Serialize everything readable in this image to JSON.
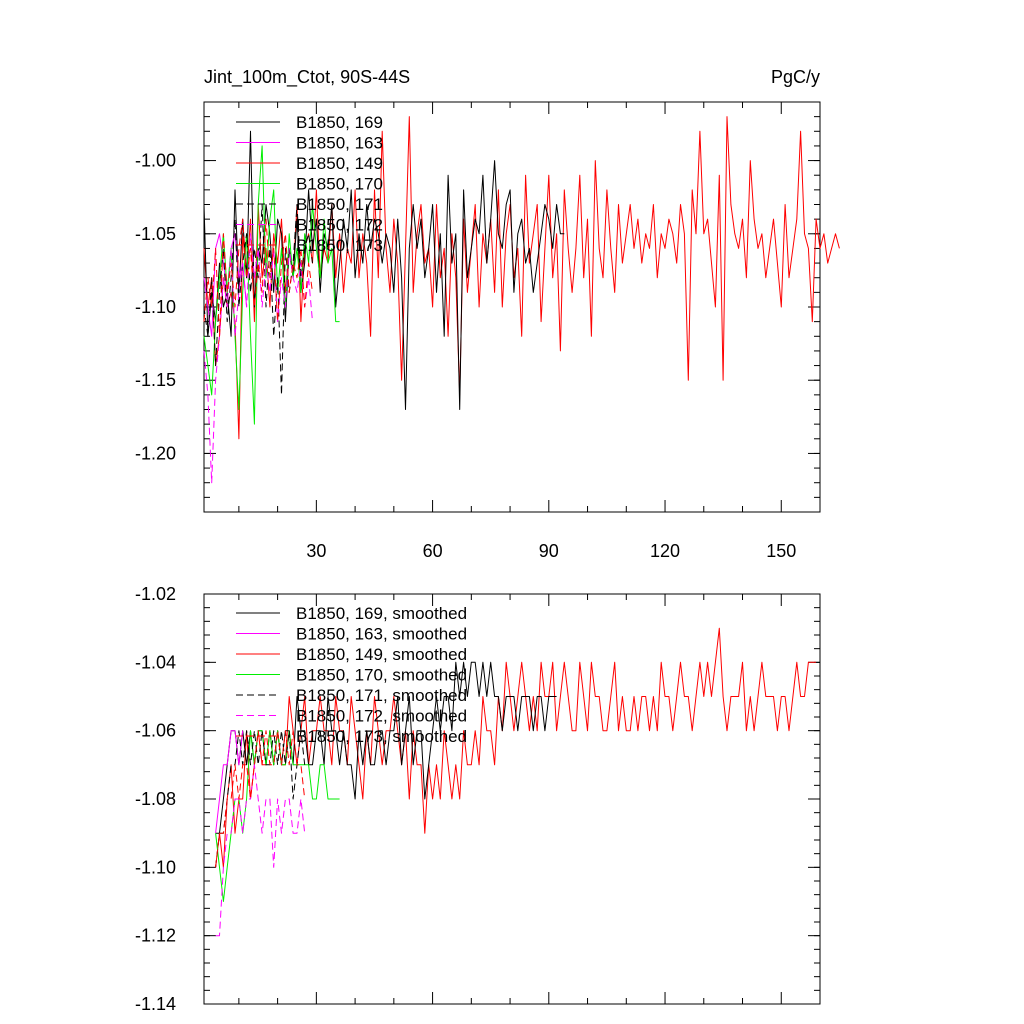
{
  "chart_data": [
    {
      "type": "line",
      "title": "Jint_100m_Ctot, 90S-44S",
      "units": "PgC/y",
      "xlim": [
        1,
        160
      ],
      "ylim": [
        -1.24,
        -0.96
      ],
      "x_ticks": [
        30,
        60,
        90,
        120,
        150
      ],
      "y_ticks": [
        -1.0,
        -1.05,
        -1.1,
        -1.15,
        -1.2
      ],
      "y_tick_labels": [
        "-1.00",
        "-1.05",
        "-1.10",
        "-1.15",
        "-1.20"
      ],
      "legend": [
        {
          "label": "B1850, 169",
          "color": "#000000",
          "dash": "solid"
        },
        {
          "label": "B1850, 163",
          "color": "#ff00ff",
          "dash": "solid"
        },
        {
          "label": "B1850, 149",
          "color": "#ff0000",
          "dash": "solid"
        },
        {
          "label": "B1850, 170",
          "color": "#00ee00",
          "dash": "solid"
        },
        {
          "label": "B1850, 171",
          "color": "#000000",
          "dash": "dash"
        },
        {
          "label": "B1850, 172",
          "color": "#ff00ff",
          "dash": "dash"
        },
        {
          "label": "B1850, 173",
          "color": "#ff0000",
          "dash": "dash"
        }
      ],
      "series": [
        {
          "color": "#ff0000",
          "dash": "solid",
          "x_start": 1,
          "values": [
            -1.06,
            -1.1,
            -1.08,
            -1.14,
            -1.12,
            -1.08,
            -1.1,
            -1.09,
            -1.11,
            -1.19,
            -1.05,
            -1.08,
            -1.04,
            -1.11,
            -1.03,
            -1.08,
            -1.06,
            -1.1,
            -1.05,
            -1.07,
            -1.04,
            -1.09,
            -1.06,
            -1.08,
            -1.03,
            -1.11,
            -1.06,
            -1.05,
            -1.07,
            -1.02,
            -1.08,
            -1.06,
            -1.07,
            -1.03,
            -1.08,
            -1.05,
            -1.09,
            -1.06,
            -1.07,
            -1.02,
            -1.08,
            -1.05,
            -1.07,
            -1.12,
            -1.02,
            -1.08,
            -0.98,
            -1.06,
            -1.09,
            -1.04,
            -1.07,
            -1.15,
            -1.06,
            -0.97,
            -1.09,
            -1.05,
            -1.03,
            -1.07,
            -1.06,
            -1.1,
            -1.03,
            -1.08,
            -1.06,
            -1.12,
            -1.05,
            -1.08,
            -1.16,
            -1.04,
            -1.09,
            -1.06,
            -1.03,
            -1.1,
            -1.05,
            -1.07,
            -1.04,
            -1.09,
            -1.02,
            -1.1,
            -1.05,
            -1.03,
            -1.08,
            -1.06,
            -1.12,
            -1.01,
            -1.07,
            -1.05,
            -1.03,
            -1.11,
            -1.06,
            -1.01,
            -1.08,
            -1.05,
            -1.13,
            -1.02,
            -1.06,
            -1.09,
            -1.06,
            -1.01,
            -1.08,
            -1.04,
            -1.12,
            -1.0,
            -1.06,
            -1.08,
            -1.02,
            -1.06,
            -1.09,
            -1.03,
            -1.07,
            -1.05,
            -1.03,
            -1.06,
            -1.04,
            -1.07,
            -1.05,
            -1.06,
            -1.03,
            -1.08,
            -1.05,
            -1.06,
            -1.04,
            -1.05,
            -1.07,
            -1.03,
            -1.05,
            -1.15,
            -1.02,
            -1.05,
            -0.98,
            -1.05,
            -1.04,
            -1.07,
            -1.1,
            -1.01,
            -1.15,
            -0.97,
            -1.03,
            -1.05,
            -1.06,
            -1.04,
            -1.08,
            -1.0,
            -1.04,
            -1.06,
            -1.05,
            -1.08,
            -1.06,
            -1.04,
            -1.07,
            -1.1,
            -1.03,
            -1.08,
            -1.06,
            -1.04,
            -0.98,
            -1.05,
            -1.06,
            -1.11,
            -1.04,
            -1.06,
            -1.05,
            -1.07,
            -1.06,
            -1.05,
            -1.06
          ]
        },
        {
          "color": "#000000",
          "dash": "solid",
          "x_start": 1,
          "values": [
            -1.03,
            -1.12,
            -1.09,
            -1.11,
            -1.07,
            -1.1,
            -1.09,
            -1.12,
            -1.02,
            -1.09,
            -1.04,
            -1.08,
            -0.98,
            -1.1,
            -1.06,
            -1.07,
            -1.03,
            -1.05,
            -1.09,
            -1.04,
            -1.05,
            -1.11,
            -1.06,
            -1.08,
            -1.04,
            -1.09,
            -1.07,
            -1.02,
            -1.06,
            -1.04,
            -1.09,
            -1.05,
            -1.06,
            -1.03,
            -1.1,
            -1.07,
            -1.04,
            -1.06,
            -1.02,
            -1.08,
            -1.05,
            -1.07,
            -1.03,
            -1.06,
            -1.04,
            -1.05,
            -1.07,
            -1.05,
            -1.06,
            -1.09,
            -1.04,
            -1.08,
            -1.17,
            -1.06,
            -1.03,
            -1.06,
            -1.04,
            -1.08,
            -1.06,
            -1.03,
            -1.09,
            -1.05,
            -1.12,
            -1.01,
            -1.07,
            -1.05,
            -1.17,
            -1.02,
            -1.08,
            -1.06,
            -1.04,
            -1.05,
            -1.01,
            -1.07,
            -1.04,
            -1.0,
            -1.05,
            -1.06,
            -1.03,
            -1.02,
            -1.09,
            -1.05,
            -1.04,
            -1.07,
            -1.06,
            -1.09,
            -1.07,
            -1.05,
            -1.03,
            -1.04,
            -1.06,
            -1.03,
            -1.05,
            -1.05
          ]
        },
        {
          "color": "#ff00ff",
          "dash": "solid",
          "x_start": 1,
          "values": [
            -1.08,
            -1.1,
            -1.12,
            -1.06,
            -1.05,
            -1.07,
            -1.09,
            -1.06,
            -1.05,
            -1.08,
            -1.07,
            -1.1
          ]
        },
        {
          "color": "#00ee00",
          "dash": "solid",
          "x_start": 1,
          "values": [
            -1.12,
            -1.14,
            -1.16,
            -1.11,
            -1.08,
            -1.05,
            -1.09,
            -1.06,
            -1.12,
            -1.17,
            -1.09,
            -1.05,
            -1.12,
            -1.18,
            -1.03,
            -0.99,
            -1.08,
            -1.04,
            -1.02,
            -1.09,
            -1.06,
            -1.1,
            -1.05,
            -1.08,
            -1.06,
            -1.09,
            -1.05,
            -1.07,
            -1.03,
            -1.06,
            -1.08,
            -1.04,
            -1.07,
            -1.06,
            -1.11,
            -1.11
          ]
        },
        {
          "color": "#000000",
          "dash": "dash",
          "x_start": 1,
          "values": [
            -1.1,
            -1.12,
            -1.08,
            -1.14,
            -1.09,
            -1.06,
            -1.11,
            -1.08,
            -1.04,
            -1.1,
            -1.07,
            -1.05,
            -1.09,
            -1.06,
            -1.08,
            -1.03,
            -1.1,
            -1.06,
            -1.12,
            -1.08,
            -1.16,
            -1.06,
            -1.09,
            -1.07,
            -1.03,
            -1.08,
            -1.06,
            -1.05,
            -1.07
          ]
        },
        {
          "color": "#ff00ff",
          "dash": "dash",
          "x_start": 1,
          "values": [
            -1.13,
            -1.16,
            -1.22,
            -1.15,
            -1.12,
            -1.08,
            -1.1,
            -1.06,
            -1.12,
            -1.09,
            -1.07,
            -1.1,
            -1.05,
            -1.08,
            -1.06,
            -1.1,
            -1.07,
            -1.09,
            -1.06,
            -1.11,
            -1.08,
            -1.1,
            -1.06,
            -1.08,
            -1.09,
            -1.07,
            -1.1,
            -1.08,
            -1.11
          ]
        },
        {
          "color": "#ff0000",
          "dash": "dash",
          "x_start": 1,
          "values": [
            -1.11,
            -1.08,
            -1.1,
            -1.06,
            -1.12,
            -1.05,
            -1.09,
            -1.07,
            -1.1,
            -1.06,
            -1.04,
            -1.08,
            -1.06,
            -1.1,
            -1.07,
            -1.09,
            -1.04,
            -1.08,
            -1.06,
            -1.11,
            -1.07,
            -1.05,
            -1.09,
            -1.07,
            -1.08,
            -1.06,
            -1.1,
            -1.07,
            -1.09
          ]
        }
      ]
    },
    {
      "type": "line",
      "xlim": [
        1,
        160
      ],
      "ylim": [
        -1.14,
        -1.02
      ],
      "x_ticks": [
        30,
        60,
        90,
        120,
        150
      ],
      "y_ticks": [
        -1.02,
        -1.04,
        -1.06,
        -1.08,
        -1.1,
        -1.12,
        -1.14
      ],
      "y_tick_labels": [
        "-1.02",
        "-1.04",
        "-1.06",
        "-1.08",
        "-1.10",
        "-1.12",
        "-1.14"
      ],
      "legend": [
        {
          "label": "B1850, 169, smoothed",
          "color": "#000000",
          "dash": "solid"
        },
        {
          "label": "B1850, 163, smoothed",
          "color": "#ff00ff",
          "dash": "solid"
        },
        {
          "label": "B1850, 149, smoothed",
          "color": "#ff0000",
          "dash": "solid"
        },
        {
          "label": "B1850, 170, smoothed",
          "color": "#00ee00",
          "dash": "solid"
        },
        {
          "label": "B1850, 171, smoothed",
          "color": "#000000",
          "dash": "dash"
        },
        {
          "label": "B1850, 172, smoothed",
          "color": "#ff00ff",
          "dash": "dash"
        },
        {
          "label": "B1850, 173, smoothed",
          "color": "#ff0000",
          "dash": "dash"
        }
      ],
      "series": [
        {
          "color": "#ff0000",
          "dash": "solid",
          "x_start": 4,
          "values": [
            -1.1,
            -1.09,
            -1.1,
            -1.08,
            -1.07,
            -1.09,
            -1.08,
            -1.08,
            -1.06,
            -1.08,
            -1.07,
            -1.06,
            -1.07,
            -1.07,
            -1.06,
            -1.07,
            -1.06,
            -1.07,
            -1.07,
            -1.05,
            -1.06,
            -1.07,
            -1.06,
            -1.05,
            -1.07,
            -1.06,
            -1.06,
            -1.05,
            -1.06,
            -1.06,
            -1.07,
            -1.05,
            -1.06,
            -1.06,
            -1.07,
            -1.05,
            -1.06,
            -1.07,
            -1.08,
            -1.06,
            -1.07,
            -1.05,
            -1.06,
            -1.07,
            -1.06,
            -1.06,
            -1.05,
            -1.06,
            -1.07,
            -1.06,
            -1.08,
            -1.06,
            -1.07,
            -1.07,
            -1.09,
            -1.07,
            -1.08,
            -1.07,
            -1.08,
            -1.06,
            -1.07,
            -1.08,
            -1.07,
            -1.08,
            -1.06,
            -1.07,
            -1.07,
            -1.06,
            -1.07,
            -1.05,
            -1.06,
            -1.06,
            -1.07,
            -1.05,
            -1.06,
            -1.04,
            -1.05,
            -1.06,
            -1.05,
            -1.04,
            -1.05,
            -1.06,
            -1.05,
            -1.06,
            -1.04,
            -1.05,
            -1.05,
            -1.04,
            -1.06,
            -1.05,
            -1.04,
            -1.05,
            -1.06,
            -1.06,
            -1.04,
            -1.05,
            -1.06,
            -1.04,
            -1.05,
            -1.05,
            -1.06,
            -1.06,
            -1.05,
            -1.04,
            -1.06,
            -1.05,
            -1.06,
            -1.06,
            -1.05,
            -1.06,
            -1.05,
            -1.05,
            -1.06,
            -1.05,
            -1.06,
            -1.04,
            -1.05,
            -1.05,
            -1.06,
            -1.05,
            -1.04,
            -1.05,
            -1.05,
            -1.06,
            -1.05,
            -1.04,
            -1.05,
            -1.04,
            -1.05,
            -1.04,
            -1.03,
            -1.05,
            -1.06,
            -1.05,
            -1.05,
            -1.05,
            -1.04,
            -1.06,
            -1.05,
            -1.06,
            -1.05,
            -1.04,
            -1.05,
            -1.05,
            -1.05,
            -1.06,
            -1.05,
            -1.05,
            -1.06,
            -1.05,
            -1.04,
            -1.05,
            -1.05,
            -1.04,
            -1.04,
            -1.04
          ]
        },
        {
          "color": "#000000",
          "dash": "solid",
          "x_start": 4,
          "values": [
            -1.09,
            -1.09,
            -1.08,
            -1.07,
            -1.06,
            -1.06,
            -1.07,
            -1.06,
            -1.07,
            -1.06,
            -1.07,
            -1.06,
            -1.06,
            -1.07,
            -1.06,
            -1.07,
            -1.06,
            -1.07,
            -1.06,
            -1.06,
            -1.07,
            -1.05,
            -1.06,
            -1.06,
            -1.07,
            -1.07,
            -1.06,
            -1.06,
            -1.07,
            -1.05,
            -1.06,
            -1.06,
            -1.07,
            -1.06,
            -1.07,
            -1.07,
            -1.08,
            -1.06,
            -1.07,
            -1.06,
            -1.07,
            -1.07,
            -1.06,
            -1.06,
            -1.07,
            -1.06,
            -1.06,
            -1.05,
            -1.07,
            -1.06,
            -1.05,
            -1.07,
            -1.06,
            -1.06,
            -1.08,
            -1.07,
            -1.06,
            -1.05,
            -1.06,
            -1.05,
            -1.05,
            -1.06,
            -1.04,
            -1.05,
            -1.04,
            -1.05,
            -1.04,
            -1.04,
            -1.05,
            -1.04,
            -1.05,
            -1.04,
            -1.05,
            -1.05,
            -1.06,
            -1.05,
            -1.05,
            -1.05,
            -1.06,
            -1.05,
            -1.05,
            -1.05,
            -1.06,
            -1.05,
            -1.05,
            -1.06,
            -1.05,
            -1.05,
            -1.05
          ]
        },
        {
          "color": "#ff00ff",
          "dash": "solid",
          "x_start": 4,
          "values": [
            -1.09,
            -1.08,
            -1.07,
            -1.07,
            -1.06,
            -1.06,
            -1.07,
            -1.06
          ]
        },
        {
          "color": "#00ee00",
          "dash": "solid",
          "x_start": 4,
          "values": [
            -1.09,
            -1.1,
            -1.11,
            -1.1,
            -1.09,
            -1.08,
            -1.08,
            -1.09,
            -1.08,
            -1.06,
            -1.07,
            -1.06,
            -1.06,
            -1.07,
            -1.06,
            -1.07,
            -1.06,
            -1.07,
            -1.07,
            -1.06,
            -1.07,
            -1.07,
            -1.07,
            -1.07,
            -1.07,
            -1.08,
            -1.08,
            -1.07,
            -1.07,
            -1.08,
            -1.08,
            -1.08,
            -1.08
          ]
        },
        {
          "color": "#000000",
          "dash": "dash",
          "x_start": 4,
          "values": [
            -1.1,
            -1.09,
            -1.09,
            -1.08,
            -1.07,
            -1.07,
            -1.06,
            -1.07,
            -1.06,
            -1.07,
            -1.06,
            -1.07,
            -1.06,
            -1.07,
            -1.07,
            -1.06,
            -1.07,
            -1.06,
            -1.07,
            -1.06,
            -1.08,
            -1.07,
            -1.06,
            -1.07
          ]
        },
        {
          "color": "#ff00ff",
          "dash": "dash",
          "x_start": 4,
          "values": [
            -1.12,
            -1.12,
            -1.1,
            -1.09,
            -1.09,
            -1.08,
            -1.08,
            -1.09,
            -1.08,
            -1.08,
            -1.07,
            -1.08,
            -1.09,
            -1.08,
            -1.08,
            -1.1,
            -1.08,
            -1.09,
            -1.08,
            -1.08,
            -1.09,
            -1.09,
            -1.08,
            -1.09
          ]
        },
        {
          "color": "#ff0000",
          "dash": "dash",
          "x_start": 4,
          "values": [
            -1.1,
            -1.09,
            -1.09,
            -1.08,
            -1.08,
            -1.07,
            -1.08,
            -1.07,
            -1.07,
            -1.08,
            -1.07,
            -1.06,
            -1.07,
            -1.06,
            -1.07,
            -1.07,
            -1.06,
            -1.07,
            -1.06,
            -1.07,
            -1.06,
            -1.07,
            -1.07,
            -1.08
          ]
        }
      ]
    }
  ]
}
